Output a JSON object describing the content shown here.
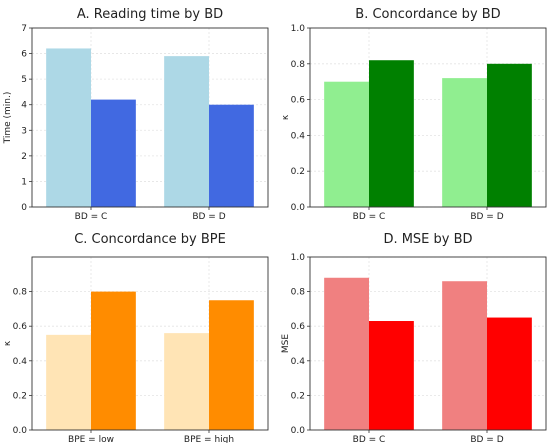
{
  "chart_data": [
    {
      "type": "bar",
      "title": "A. Reading time by BD",
      "xlabel": "",
      "ylabel": "Time (min.)",
      "ylim": [
        0,
        7
      ],
      "yticks": [
        0,
        1,
        2,
        3,
        4,
        5,
        6,
        7
      ],
      "categories": [
        "BD = C",
        "BD = D"
      ],
      "grid": true,
      "series": [
        {
          "values": [
            6.2,
            5.9
          ],
          "color": "#add8e6"
        },
        {
          "values": [
            4.2,
            4.0
          ],
          "color": "#4169e1"
        }
      ]
    },
    {
      "type": "bar",
      "title": "B. Concordance by BD",
      "xlabel": "",
      "ylabel": "κ",
      "ylim": [
        0,
        1.0
      ],
      "yticks": [
        0.0,
        0.2,
        0.4,
        0.6,
        0.8,
        1.0
      ],
      "categories": [
        "BD = C",
        "BD = D"
      ],
      "grid": true,
      "series": [
        {
          "values": [
            0.7,
            0.72
          ],
          "color": "#90ee90"
        },
        {
          "values": [
            0.82,
            0.8
          ],
          "color": "#008000"
        }
      ]
    },
    {
      "type": "bar",
      "title": "C. Concordance by BPE",
      "xlabel": "",
      "ylabel": "κ",
      "ylim": [
        0,
        1.0
      ],
      "yticks": [
        0.0,
        0.2,
        0.4,
        0.6,
        0.8
      ],
      "categories": [
        "BPE = low",
        "BPE = high"
      ],
      "grid": true,
      "series": [
        {
          "values": [
            0.55,
            0.56
          ],
          "color": "#ffe4b5"
        },
        {
          "values": [
            0.8,
            0.75
          ],
          "color": "#ff8c00"
        }
      ]
    },
    {
      "type": "bar",
      "title": "D. MSE by BD",
      "xlabel": "",
      "ylabel": "MSE",
      "ylim": [
        0,
        1.0
      ],
      "yticks": [
        0.0,
        0.2,
        0.4,
        0.6,
        0.8,
        1.0
      ],
      "categories": [
        "BD = C",
        "BD = D"
      ],
      "grid": true,
      "series": [
        {
          "values": [
            0.88,
            0.86
          ],
          "color": "#f08080"
        },
        {
          "values": [
            0.63,
            0.65
          ],
          "color": "#ff0000"
        }
      ]
    }
  ]
}
